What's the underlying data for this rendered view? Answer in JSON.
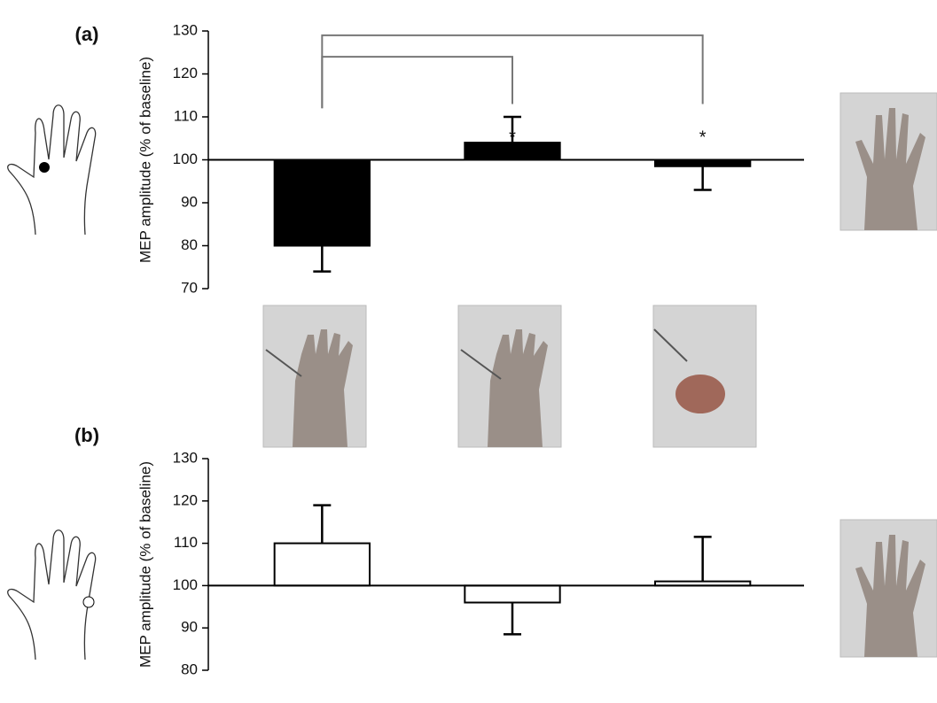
{
  "chart_data": [
    {
      "type": "bar",
      "panel_label": "(a)",
      "y_label": "MEP amplitude (% of baseline)",
      "categories": [
        null,
        null,
        null
      ],
      "values": [
        80,
        104,
        98.5
      ],
      "errors": [
        6,
        6,
        5.5
      ],
      "baseline": 100,
      "color": "#000000",
      "annotations": [
        null,
        "*",
        "*"
      ],
      "ylim": [
        70,
        130
      ],
      "yticks": [
        70,
        80,
        90,
        100,
        110,
        120,
        130
      ]
    },
    {
      "type": "bar",
      "panel_label": "(b)",
      "y_label": "MEP amplitude (% of baseline)",
      "categories": [
        null,
        null,
        null
      ],
      "values": [
        110,
        96,
        101
      ],
      "errors": [
        9,
        7.5,
        10.5
      ],
      "baseline": 100,
      "color": "#ffffff",
      "annotations": [
        null,
        null,
        null
      ],
      "ylim": [
        80,
        130
      ],
      "yticks": [
        80,
        90,
        100,
        110,
        120,
        130
      ]
    }
  ]
}
